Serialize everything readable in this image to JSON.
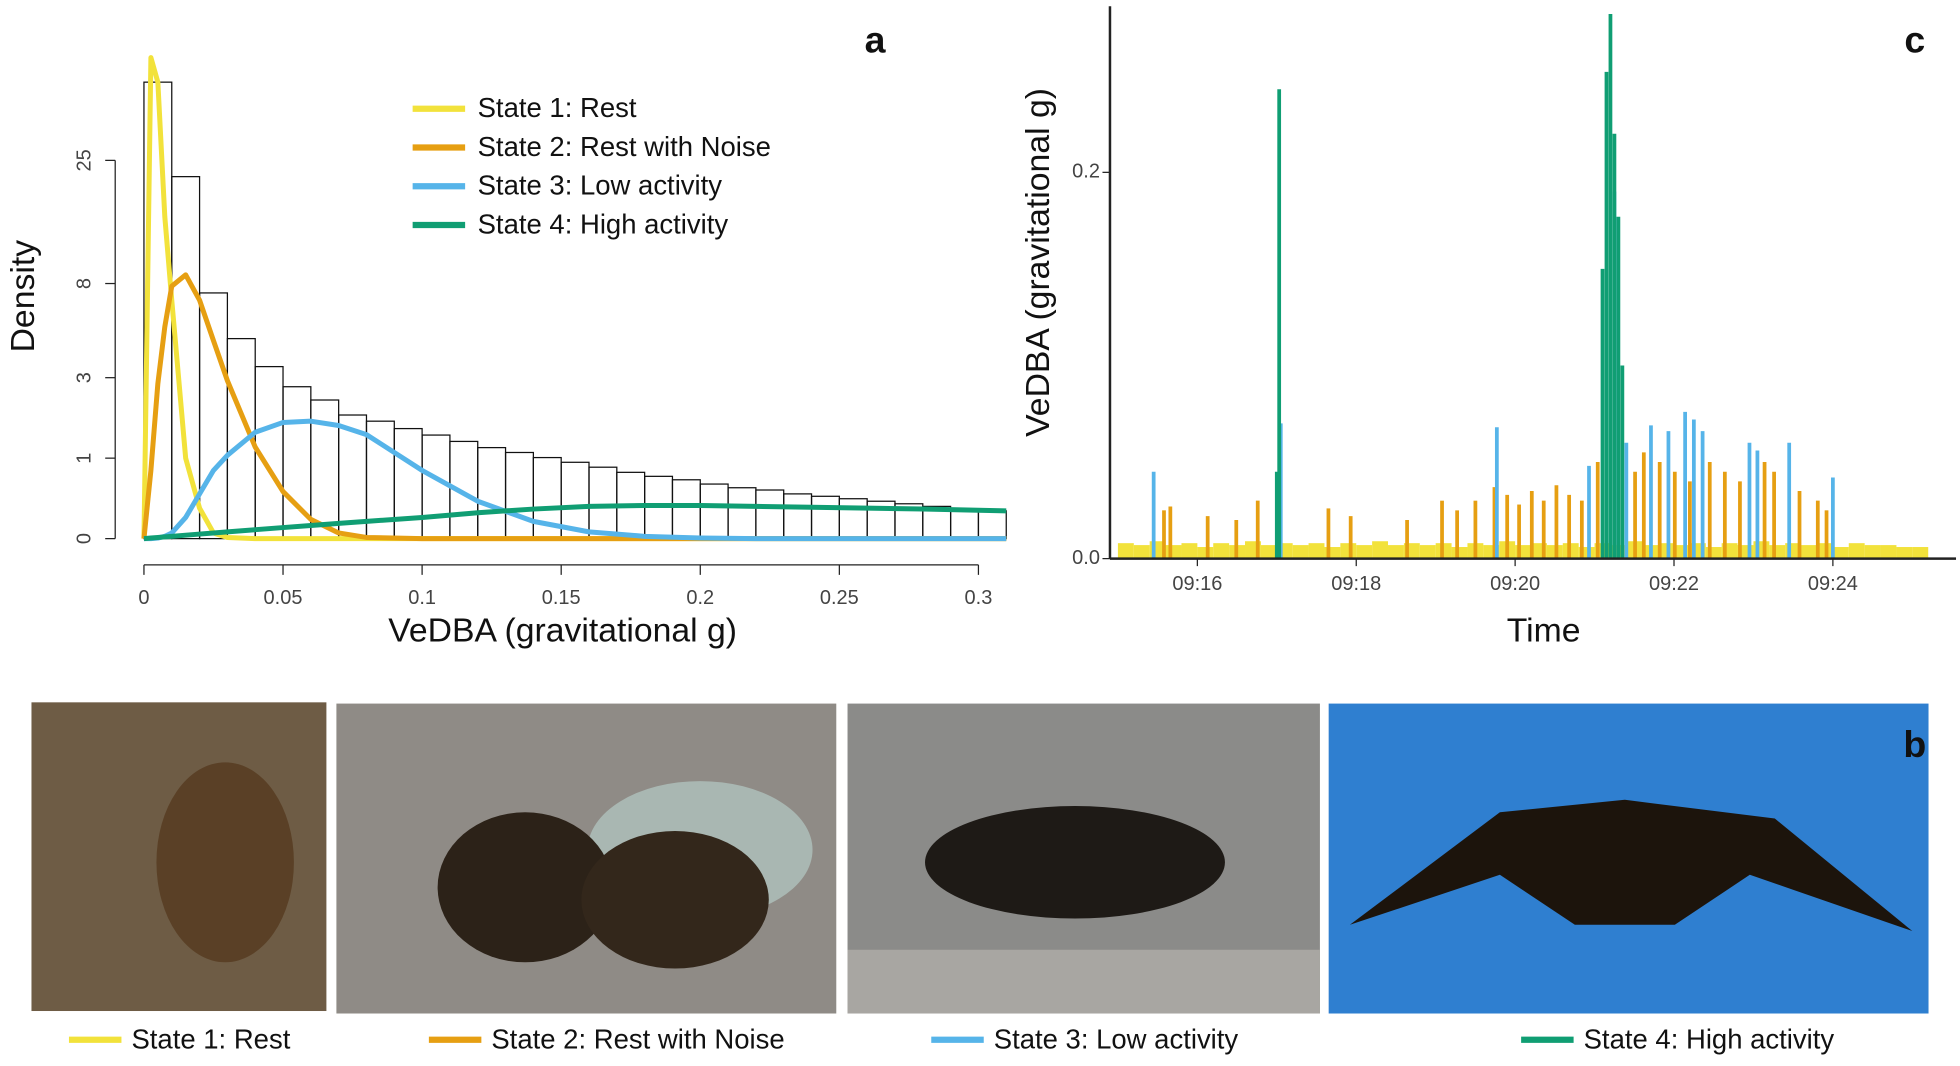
{
  "chart_data": [
    {
      "type": "histogram",
      "panel_label": "a",
      "xlabel": "VeDBA (gravitational g)",
      "ylabel": "Density",
      "bins": [
        0,
        0.01,
        0.02,
        0.03,
        0.04,
        0.05,
        0.06,
        0.07,
        0.08,
        0.09,
        0.1,
        0.11,
        0.12,
        0.13,
        0.14,
        0.15,
        0.16,
        0.17,
        0.18,
        0.19,
        0.2,
        0.21,
        0.22,
        0.23,
        0.24,
        0.25,
        0.26,
        0.27,
        0.28,
        0.29,
        0.3,
        0.31
      ],
      "counts": [
        50,
        21.6,
        7.3,
        4.6,
        3.4,
        2.7,
        2.3,
        1.9,
        1.75,
        1.58,
        1.44,
        1.31,
        1.19,
        1.1,
        1.01,
        0.93,
        0.85,
        0.77,
        0.71,
        0.66,
        0.6,
        0.55,
        0.52,
        0.47,
        0.44,
        0.41,
        0.38,
        0.35,
        0.32,
        0.29,
        0.27
      ],
      "curve_x": [
        0,
        0.0025,
        0.005,
        0.0075,
        0.01,
        0.015,
        0.02,
        0.025,
        0.03,
        0.04,
        0.05,
        0.06,
        0.07,
        0.08,
        0.1,
        0.12,
        0.14,
        0.16,
        0.18,
        0.2,
        0.22,
        0.24,
        0.26,
        0.28,
        0.31
      ],
      "series": [
        {
          "name": "State 1: Rest",
          "color": "#f2e23b",
          "values": [
            0,
            62,
            50,
            15,
            6.8,
            1.0,
            0.3,
            0.05,
            0.01,
            0,
            0,
            0,
            0,
            0,
            0,
            0,
            0,
            0,
            0,
            0,
            0,
            0,
            0,
            0,
            0
          ]
        },
        {
          "name": "State 2: Rest with Noise",
          "color": "#e69f12",
          "values": [
            0,
            0.8,
            2.8,
            5.2,
            7.8,
            8.7,
            6.8,
            4.5,
            2.9,
            1.2,
            0.5,
            0.18,
            0.05,
            0.01,
            0,
            0,
            0,
            0,
            0,
            0,
            0,
            0,
            0,
            0,
            0
          ]
        },
        {
          "name": "State 3: Low activity",
          "color": "#56b4e9",
          "values": [
            0,
            0,
            0.005,
            0.02,
            0.05,
            0.2,
            0.47,
            0.8,
            1.05,
            1.5,
            1.72,
            1.75,
            1.65,
            1.45,
            0.8,
            0.38,
            0.16,
            0.06,
            0.02,
            0.005,
            0,
            0,
            0,
            0,
            0
          ]
        },
        {
          "name": "State 4: High activity",
          "color": "#109e73",
          "values": [
            0,
            0.005,
            0.01,
            0.015,
            0.02,
            0.03,
            0.04,
            0.05,
            0.06,
            0.08,
            0.1,
            0.12,
            0.14,
            0.16,
            0.2,
            0.25,
            0.29,
            0.32,
            0.33,
            0.33,
            0.32,
            0.31,
            0.3,
            0.29,
            0.27
          ]
        }
      ],
      "xlim": [
        0,
        0.31
      ],
      "ylim": [
        0,
        70
      ],
      "yscale": "log1p",
      "xticks": [
        0,
        0.05,
        0.1,
        0.15,
        0.2,
        0.25,
        0.3
      ],
      "yticks": [
        0,
        1,
        3,
        8,
        25
      ],
      "legend": "upper right"
    },
    {
      "type": "spikes",
      "panel_label": "c",
      "xlabel": "Time",
      "ylabel": "VeDBA (gravitational g)",
      "xlim": [
        14.9,
        25.55
      ],
      "ylim": [
        0,
        0.286
      ],
      "xticks": [
        {
          "value": 16,
          "label": "09:16"
        },
        {
          "value": 18,
          "label": "09:18"
        },
        {
          "value": 20,
          "label": "09:20"
        },
        {
          "value": 22,
          "label": "09:22"
        },
        {
          "value": 24,
          "label": "09:24"
        }
      ],
      "yticks": [
        {
          "value": 0,
          "label": "0.0"
        },
        0.2
      ],
      "series": [
        {
          "color": "#f2e23b",
          "x": [
            15,
            15.2,
            15.4,
            15.6,
            15.8,
            16,
            16.2,
            16.4,
            16.6,
            16.8,
            17,
            17.2,
            17.4,
            17.6,
            17.8,
            18,
            18.2,
            18.4,
            18.6,
            18.8,
            19,
            19.2,
            19.4,
            19.6,
            19.8,
            20,
            20.2,
            20.4,
            20.6,
            20.8,
            21,
            21.2,
            21.4,
            21.6,
            21.8,
            22,
            22.2,
            22.4,
            22.6,
            22.8,
            23,
            23.2,
            23.4,
            23.6,
            23.8,
            24,
            24.2,
            24.4,
            24.6,
            24.8,
            25
          ],
          "values": [
            0.008,
            0.007,
            0.009,
            0.007,
            0.008,
            0.006,
            0.008,
            0.007,
            0.009,
            0.007,
            0.008,
            0.007,
            0.008,
            0.006,
            0.008,
            0.007,
            0.009,
            0.007,
            0.008,
            0.007,
            0.008,
            0.006,
            0.008,
            0.007,
            0.009,
            0.007,
            0.008,
            0.007,
            0.008,
            0.006,
            0.008,
            0.007,
            0.009,
            0.007,
            0.008,
            0.007,
            0.008,
            0.006,
            0.008,
            0.007,
            0.009,
            0.007,
            0.008,
            0.007,
            0.008,
            0.006,
            0.008,
            0.007,
            0.007,
            0.006,
            0.006
          ]
        },
        {
          "color": "#e69f12",
          "x": [
            15.58,
            15.66,
            16.13,
            16.49,
            16.76,
            17.65,
            17.93,
            18.64,
            19.08,
            19.27,
            19.5,
            19.74,
            19.9,
            20.05,
            20.21,
            20.36,
            20.52,
            20.68,
            20.84,
            21.04,
            21.51,
            21.62,
            21.82,
            22.01,
            22.2,
            22.45,
            22.64,
            22.83,
            23.14,
            23.26,
            23.58,
            23.81,
            23.92
          ],
          "values": [
            0.025,
            0.027,
            0.022,
            0.02,
            0.03,
            0.026,
            0.022,
            0.02,
            0.03,
            0.025,
            0.03,
            0.037,
            0.033,
            0.028,
            0.035,
            0.03,
            0.038,
            0.033,
            0.03,
            0.05,
            0.045,
            0.055,
            0.05,
            0.045,
            0.04,
            0.05,
            0.045,
            0.04,
            0.05,
            0.045,
            0.035,
            0.03,
            0.025
          ]
        },
        {
          "color": "#56b4e9",
          "x": [
            15.45,
            17.05,
            19.77,
            20.93,
            21.25,
            21.4,
            21.71,
            21.93,
            22.14,
            22.25,
            22.36,
            22.95,
            23.05,
            23.45,
            24.0
          ],
          "values": [
            0.045,
            0.07,
            0.068,
            0.048,
            0.19,
            0.06,
            0.069,
            0.066,
            0.076,
            0.072,
            0.066,
            0.06,
            0.056,
            0.06,
            0.042
          ]
        },
        {
          "color": "#109e73",
          "x": [
            17.0,
            17.03,
            21.1,
            21.15,
            21.2,
            21.25,
            21.3,
            21.35
          ],
          "values": [
            0.045,
            0.243,
            0.15,
            0.252,
            0.282,
            0.22,
            0.177,
            0.1
          ]
        }
      ]
    }
  ],
  "photos": {
    "panel_label": "b",
    "captions": [
      "State 1: Rest",
      "State 2: Rest with Noise",
      "State 3: Low activity",
      "State 4: High activity"
    ]
  }
}
